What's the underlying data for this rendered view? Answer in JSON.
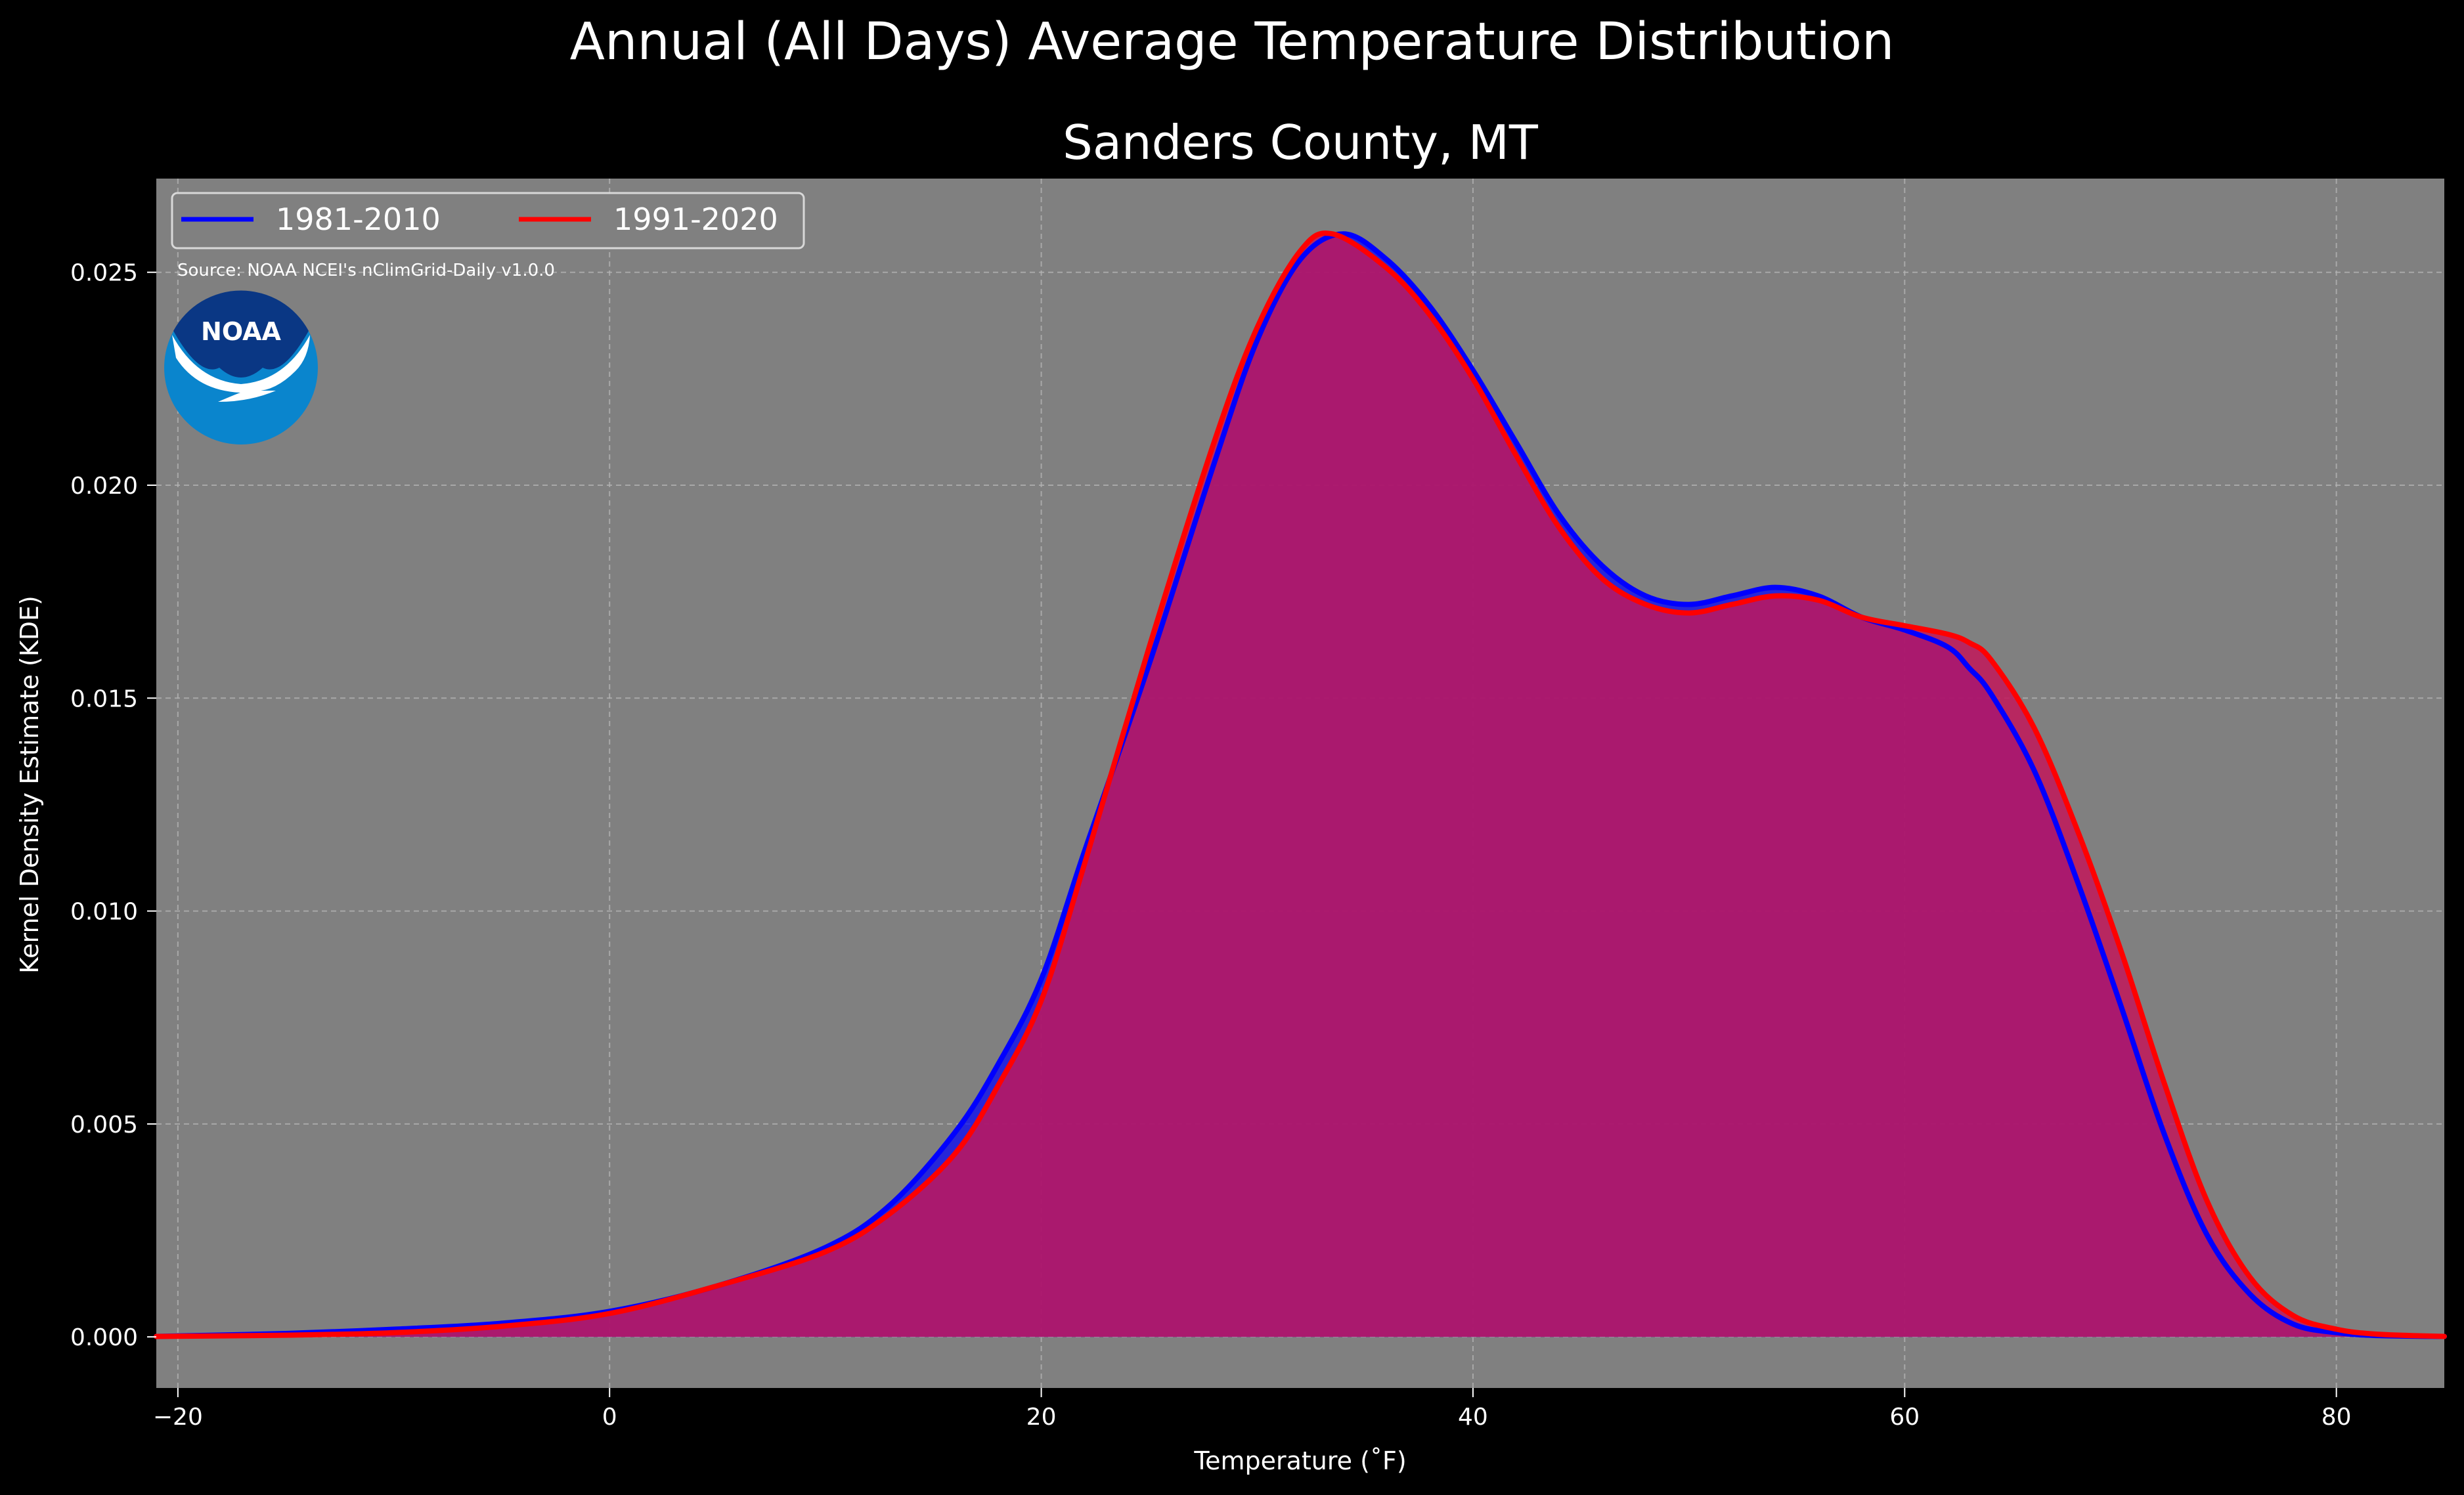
{
  "chart_data": {
    "type": "line",
    "title": "Annual (All Days) Average Temperature Distribution",
    "subtitle": "Sanders County, MT",
    "xlabel": "Temperature (˚F)",
    "ylabel": "Kernel Density Estimate (KDE)",
    "xlim": [
      -21,
      85
    ],
    "ylim": [
      -0.0012,
      0.0272
    ],
    "xticks": [
      -20,
      0,
      20,
      40,
      60,
      80
    ],
    "yticks": [
      0.0,
      0.005,
      0.01,
      0.015,
      0.02,
      0.025
    ],
    "xtick_labels": [
      "−20",
      "0",
      "20",
      "40",
      "60",
      "80"
    ],
    "ytick_labels": [
      "0.000",
      "0.005",
      "0.010",
      "0.015",
      "0.020",
      "0.025"
    ],
    "grid": true,
    "legend_position": "top-left",
    "source_note": "Source: NOAA NCEI's nClimGrid-Daily v1.0.0",
    "logo_text": "NOAA",
    "colors": {
      "figure_background": "#000000",
      "plot_background": "#808080",
      "grid": "#b3b3b3",
      "logo_dark": "#0a3784",
      "logo_light": "#0a85cd"
    },
    "series": [
      {
        "name": "1981-2010",
        "color": "#0000ff",
        "fill": "#0000ff",
        "x": [
          -21,
          -15,
          -10,
          -5,
          0,
          5,
          10,
          13,
          16,
          18,
          20,
          22,
          25,
          28,
          30,
          32,
          34,
          36,
          38,
          40,
          42,
          44,
          46,
          48,
          50,
          52,
          54,
          56,
          58,
          60,
          62,
          63,
          64,
          66,
          68,
          70,
          72,
          74,
          76,
          78,
          80,
          82,
          85
        ],
        "y": [
          1e-05,
          8e-05,
          0.00018,
          0.00032,
          0.0006,
          0.0012,
          0.0021,
          0.0031,
          0.0048,
          0.0064,
          0.0084,
          0.0114,
          0.0158,
          0.0205,
          0.0234,
          0.0253,
          0.0259,
          0.0253,
          0.0242,
          0.0227,
          0.021,
          0.0193,
          0.0181,
          0.0174,
          0.0172,
          0.0174,
          0.0176,
          0.0174,
          0.0169,
          0.0166,
          0.0162,
          0.0157,
          0.0151,
          0.0133,
          0.0107,
          0.0078,
          0.0048,
          0.0024,
          0.001,
          0.0003,
          0.0001,
          3e-05,
          1e-05
        ]
      },
      {
        "name": "1991-2020",
        "color": "#ff0000",
        "fill": "#c2185b",
        "x": [
          -21,
          -15,
          -10,
          -5,
          0,
          5,
          10,
          13,
          16,
          18,
          20,
          22,
          25,
          28,
          30,
          32,
          33.5,
          36,
          38,
          40,
          42,
          44,
          46,
          48,
          50,
          52,
          54,
          56,
          58,
          60,
          62,
          63,
          64,
          66,
          68,
          70,
          72,
          74,
          76,
          78,
          80,
          82,
          85
        ],
        "y": [
          1e-05,
          4e-05,
          0.0001,
          0.00025,
          0.00055,
          0.0012,
          0.002,
          0.0029,
          0.0043,
          0.0059,
          0.0079,
          0.0111,
          0.0162,
          0.021,
          0.0237,
          0.0255,
          0.0259,
          0.0251,
          0.024,
          0.0225,
          0.0207,
          0.019,
          0.0178,
          0.0172,
          0.017,
          0.0172,
          0.0174,
          0.0173,
          0.0169,
          0.0167,
          0.0165,
          0.0163,
          0.0159,
          0.0143,
          0.0119,
          0.0091,
          0.006,
          0.0032,
          0.0014,
          0.0005,
          0.00018,
          6e-05,
          1e-05
        ]
      }
    ]
  }
}
